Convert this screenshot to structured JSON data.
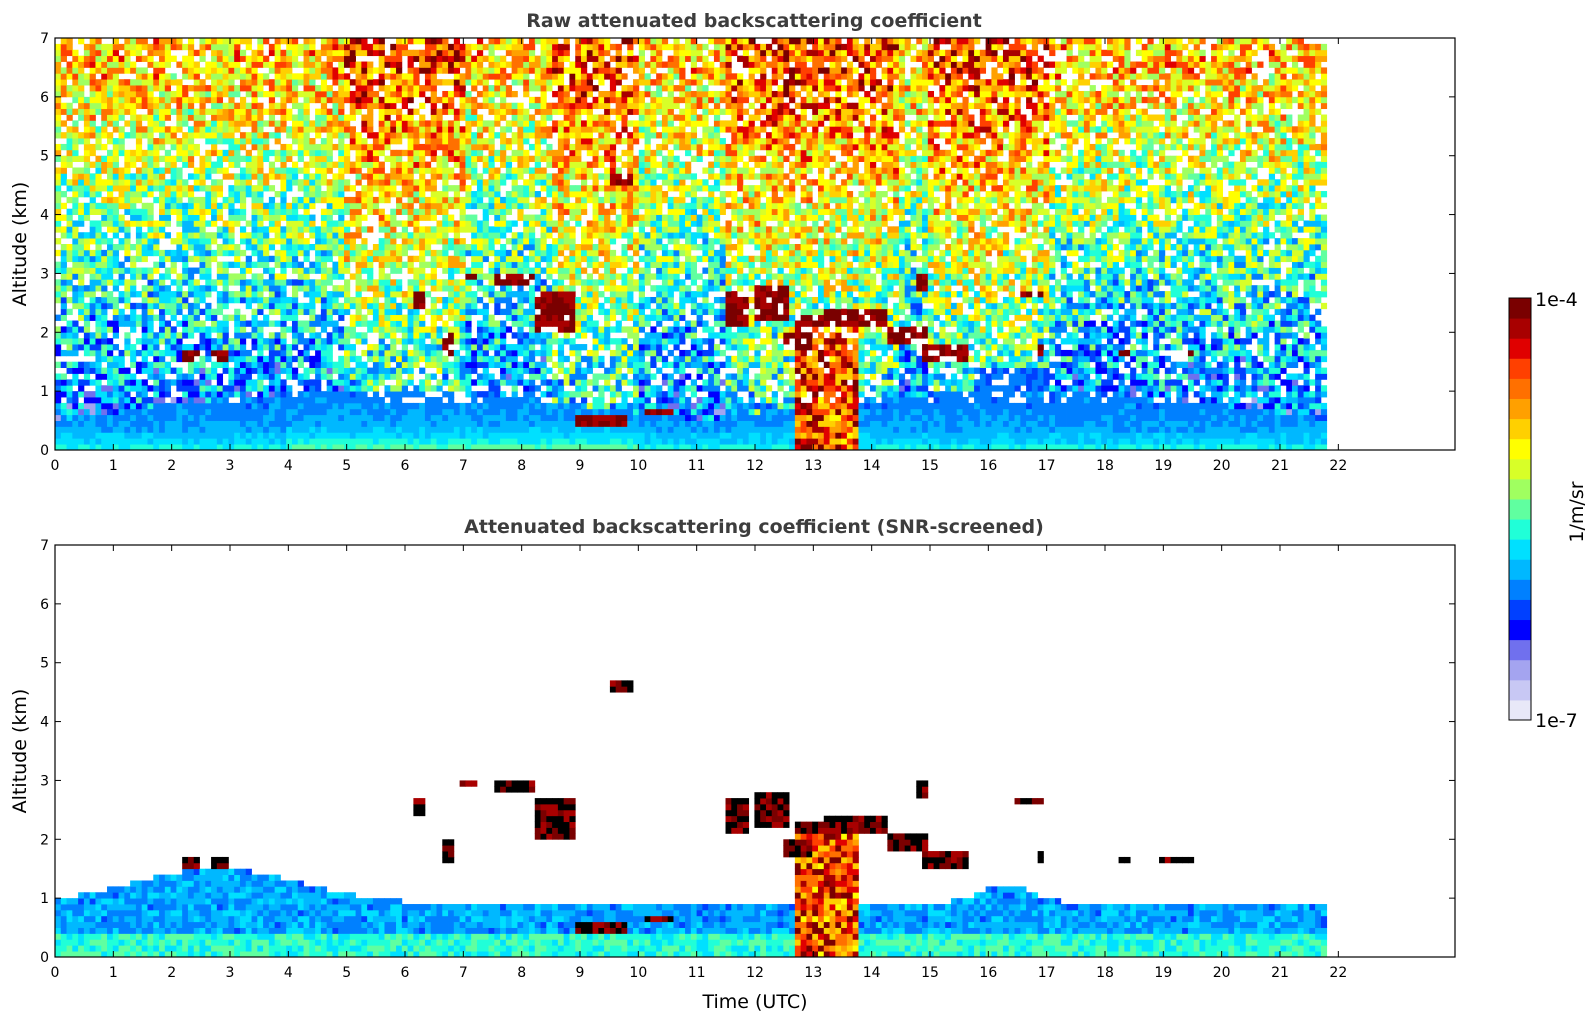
{
  "chart_data": [
    {
      "type": "heatmap",
      "title": "Raw attenuated backscattering coefficient",
      "xlabel": "",
      "ylabel": "Altitude (km)",
      "xlim": [
        0,
        24
      ],
      "ylim": [
        0,
        7
      ],
      "data_extent_x": [
        0,
        21.8
      ],
      "x_ticks": [
        "0",
        "1",
        "2",
        "3",
        "4",
        "5",
        "6",
        "7",
        "8",
        "9",
        "10",
        "11",
        "12",
        "13",
        "14",
        "15",
        "16",
        "17",
        "18",
        "19",
        "20",
        "21",
        "22"
      ],
      "y_ticks": [
        "0",
        "1",
        "2",
        "3",
        "4",
        "5",
        "6",
        "7"
      ],
      "screened": false,
      "grid": false
    },
    {
      "type": "heatmap",
      "title": "Attenuated backscattering coefficient (SNR-screened)",
      "xlabel": "Time (UTC)",
      "ylabel": "Altitude (km)",
      "xlim": [
        0,
        24
      ],
      "ylim": [
        0,
        7
      ],
      "data_extent_x": [
        0,
        21.8
      ],
      "x_ticks": [
        "0",
        "1",
        "2",
        "3",
        "4",
        "5",
        "6",
        "7",
        "8",
        "9",
        "10",
        "11",
        "12",
        "13",
        "14",
        "15",
        "16",
        "17",
        "18",
        "19",
        "20",
        "21",
        "22"
      ],
      "y_ticks": [
        "0",
        "1",
        "2",
        "3",
        "4",
        "5",
        "6",
        "7"
      ],
      "screened": true,
      "grid": false
    }
  ],
  "colorbar": {
    "label": "1/m/sr",
    "max_label": "1e-4",
    "min_label": "1e-7",
    "scale": "log",
    "colormap": "jet",
    "colors": [
      "#e8e8f8",
      "#c8c8f4",
      "#a4a4f0",
      "#7070ee",
      "#0000ff",
      "#0040ff",
      "#0080ff",
      "#00b8ff",
      "#00e0ff",
      "#20ffd8",
      "#60ffa0",
      "#a0ff60",
      "#d8ff28",
      "#ffff00",
      "#ffd000",
      "#ffa000",
      "#ff7000",
      "#ff4000",
      "#e00000",
      "#a80000",
      "#7a0000"
    ]
  },
  "features": {
    "clouds": [
      {
        "t0": 6.9,
        "t1": 7.2,
        "alt": 2.95,
        "thick": 0.08
      },
      {
        "t0": 7.5,
        "t1": 8.2,
        "alt": 2.9,
        "thick": 0.08
      },
      {
        "t0": 8.2,
        "t1": 8.9,
        "alt": 2.4,
        "thick": 0.6
      },
      {
        "t0": 6.1,
        "t1": 6.3,
        "alt": 2.55,
        "thick": 0.12
      },
      {
        "t0": 6.6,
        "t1": 6.8,
        "alt": 1.8,
        "thick": 0.25
      },
      {
        "t0": 9.5,
        "t1": 9.9,
        "alt": 4.6,
        "thick": 0.08
      },
      {
        "t0": 2.2,
        "t1": 2.5,
        "alt": 1.57,
        "thick": 0.08
      },
      {
        "t0": 2.7,
        "t1": 3.0,
        "alt": 1.62,
        "thick": 0.06
      },
      {
        "t0": 11.5,
        "t1": 11.9,
        "alt": 2.4,
        "thick": 0.4
      },
      {
        "t0": 12.0,
        "t1": 12.6,
        "alt": 2.5,
        "thick": 0.5
      },
      {
        "t0": 12.5,
        "t1": 13.0,
        "alt": 1.85,
        "thick": 0.3
      },
      {
        "t0": 13.2,
        "t1": 14.3,
        "alt": 2.25,
        "thick": 0.25
      },
      {
        "t0": 14.3,
        "t1": 15.0,
        "alt": 1.95,
        "thick": 0.25
      },
      {
        "t0": 14.9,
        "t1": 15.7,
        "alt": 1.65,
        "thick": 0.25
      },
      {
        "t0": 14.8,
        "t1": 15.0,
        "alt": 2.85,
        "thick": 0.12
      },
      {
        "t0": 16.4,
        "t1": 16.9,
        "alt": 2.65,
        "thick": 0.08
      },
      {
        "t0": 16.8,
        "t1": 16.95,
        "alt": 1.7,
        "thick": 0.2
      },
      {
        "t0": 18.2,
        "t1": 18.4,
        "alt": 1.65,
        "thick": 0.06
      },
      {
        "t0": 18.9,
        "t1": 19.5,
        "alt": 1.65,
        "thick": 0.06
      },
      {
        "t0": 8.9,
        "t1": 9.8,
        "alt": 0.5,
        "thick": 0.08
      },
      {
        "t0": 10.1,
        "t1": 10.6,
        "alt": 0.65,
        "thick": 0.06
      }
    ],
    "rain_columns": [
      {
        "t0": 12.7,
        "t1": 13.75,
        "top": 2.3
      }
    ]
  }
}
